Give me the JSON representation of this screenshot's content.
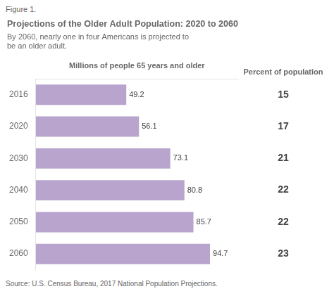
{
  "chart_data": {
    "type": "bar",
    "orientation": "horizontal",
    "figure_label": "Figure 1.",
    "title": "Projections of the Older Adult Population: 2020 to 2060",
    "subtitle": "By 2060, nearly one in four Americans is projected to\nbe an older adult.",
    "xlabel": "Millions of people 65 years and older",
    "categories": [
      "2016",
      "2020",
      "2030",
      "2040",
      "2050",
      "2060"
    ],
    "values": [
      49.2,
      56.1,
      73.1,
      80.8,
      85.7,
      94.7
    ],
    "color": "#b8a4cc",
    "percents": [
      15,
      17,
      21,
      22,
      22,
      23
    ],
    "percents_label": "Percent of population",
    "source": "Source: U.S. Census Bureau, 2017 National Population Projections.",
    "xlim": [
      0,
      110
    ],
    "data_labels": true,
    "tick_labels": "y",
    "grid": false
  }
}
